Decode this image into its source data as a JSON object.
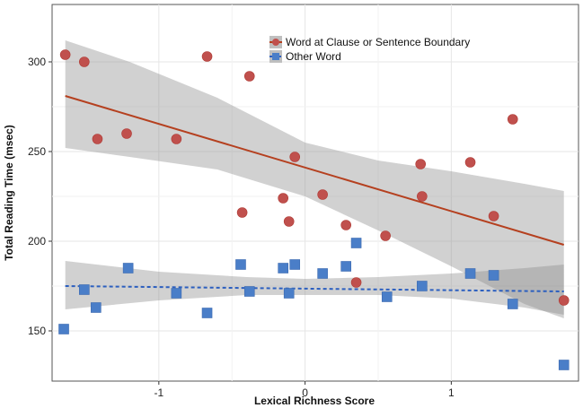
{
  "chart_data": {
    "type": "scatter",
    "xlabel": "Lexical Richness Score",
    "ylabel": "Total Reading Time (msec)",
    "xlim": [
      -1.73,
      1.87
    ],
    "ylim": [
      122,
      332
    ],
    "x_ticks": [
      -1,
      0,
      1
    ],
    "x_tick_labels": [
      "-1",
      "0",
      "1"
    ],
    "y_ticks": [
      150,
      200,
      250,
      300
    ],
    "y_tick_labels": [
      "150",
      "200",
      "250",
      "300"
    ],
    "grid": true,
    "legend_position": "top-center",
    "series": [
      {
        "name": "Word at Clause or Sentence Boundary",
        "color": "#c0504d",
        "line_color": "#b5401f",
        "marker": "circle",
        "line_style": "solid",
        "points": [
          {
            "x": -1.64,
            "y": 304
          },
          {
            "x": -1.51,
            "y": 300
          },
          {
            "x": -1.42,
            "y": 257
          },
          {
            "x": -1.22,
            "y": 260
          },
          {
            "x": -0.88,
            "y": 257
          },
          {
            "x": -0.67,
            "y": 303
          },
          {
            "x": -0.43,
            "y": 216
          },
          {
            "x": -0.38,
            "y": 292
          },
          {
            "x": -0.15,
            "y": 224
          },
          {
            "x": -0.11,
            "y": 211
          },
          {
            "x": -0.07,
            "y": 247
          },
          {
            "x": 0.12,
            "y": 226
          },
          {
            "x": 0.28,
            "y": 209
          },
          {
            "x": 0.35,
            "y": 177
          },
          {
            "x": 0.55,
            "y": 203
          },
          {
            "x": 0.79,
            "y": 243
          },
          {
            "x": 0.8,
            "y": 225
          },
          {
            "x": 1.13,
            "y": 244
          },
          {
            "x": 1.29,
            "y": 214
          },
          {
            "x": 1.42,
            "y": 268
          },
          {
            "x": 1.77,
            "y": 167
          }
        ],
        "fit": {
          "x": [
            -1.64,
            1.77
          ],
          "y": [
            281,
            198
          ]
        },
        "ci": {
          "x": [
            -1.64,
            -1.2,
            -0.6,
            0.0,
            0.5,
            1.0,
            1.5,
            1.77
          ],
          "lower": [
            252,
            247,
            240,
            225,
            206,
            186,
            165,
            157
          ],
          "upper": [
            312,
            300,
            280,
            255,
            245,
            239,
            232,
            228
          ]
        }
      },
      {
        "name": "Other Word",
        "color": "#4a7ec8",
        "line_color": "#2c5fbf",
        "marker": "square",
        "line_style": "dashed",
        "points": [
          {
            "x": -1.65,
            "y": 151
          },
          {
            "x": -1.51,
            "y": 173
          },
          {
            "x": -1.43,
            "y": 163
          },
          {
            "x": -1.21,
            "y": 185
          },
          {
            "x": -0.88,
            "y": 171
          },
          {
            "x": -0.67,
            "y": 160
          },
          {
            "x": -0.44,
            "y": 187
          },
          {
            "x": -0.38,
            "y": 172
          },
          {
            "x": -0.15,
            "y": 185
          },
          {
            "x": -0.11,
            "y": 171
          },
          {
            "x": -0.07,
            "y": 187
          },
          {
            "x": 0.12,
            "y": 182
          },
          {
            "x": 0.28,
            "y": 186
          },
          {
            "x": 0.35,
            "y": 199
          },
          {
            "x": 0.56,
            "y": 169
          },
          {
            "x": 0.8,
            "y": 175
          },
          {
            "x": 1.13,
            "y": 182
          },
          {
            "x": 1.29,
            "y": 181
          },
          {
            "x": 1.42,
            "y": 165
          },
          {
            "x": 1.77,
            "y": 131
          }
        ],
        "fit": {
          "x": [
            -1.64,
            1.77
          ],
          "y": [
            175,
            172
          ]
        },
        "ci": {
          "x": [
            -1.64,
            -1.0,
            -0.4,
            0.0,
            0.5,
            1.0,
            1.5,
            1.77
          ],
          "lower": [
            162,
            167,
            170,
            170,
            170,
            168,
            163,
            159
          ],
          "upper": [
            189,
            183,
            180,
            179,
            180,
            182,
            185,
            187
          ]
        }
      }
    ]
  }
}
